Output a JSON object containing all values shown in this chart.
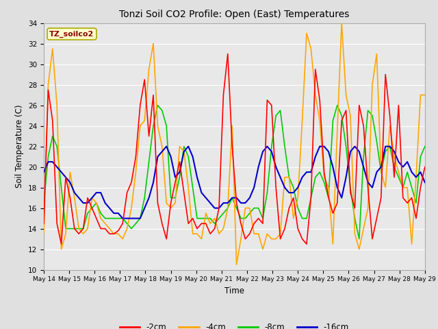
{
  "title": "Tonzi Soil CO2 Profile: Open (East) Temperatures",
  "xlabel": "Time",
  "ylabel": "Soil Temperature (C)",
  "legend_label": "TZ_soilco2",
  "ylim": [
    10,
    34
  ],
  "yticks": [
    10,
    12,
    14,
    16,
    18,
    20,
    22,
    24,
    26,
    28,
    30,
    32,
    34
  ],
  "line_colors": {
    "-2cm": "#ff0000",
    "-4cm": "#ffa500",
    "-8cm": "#00cc00",
    "-16cm": "#0000cc"
  },
  "line_widths": {
    "-2cm": 1.2,
    "-4cm": 1.2,
    "-8cm": 1.2,
    "-16cm": 1.5
  },
  "background_color": "#e0e0e0",
  "plot_bg_color": "#e8e8e8",
  "grid_color": "#ffffff",
  "x_start": 14,
  "x_end": 29,
  "x_labels": [
    "May 14",
    "May 15",
    "May 16",
    "May 17",
    "May 18",
    "May 19",
    "May 20",
    "May 21",
    "May 22",
    "May 23",
    "May 24",
    "May 25",
    "May 26",
    "May 27",
    "May 28",
    "May 29"
  ],
  "x_ticks": [
    14,
    15,
    16,
    17,
    18,
    19,
    20,
    21,
    22,
    23,
    24,
    25,
    26,
    27,
    28,
    29
  ],
  "data_2cm": [
    14.5,
    27.5,
    24.5,
    14.5,
    12.5,
    19.0,
    17.0,
    14.0,
    13.5,
    14.0,
    17.0,
    16.0,
    15.0,
    14.0,
    14.0,
    13.5,
    13.5,
    13.8,
    14.5,
    17.5,
    18.5,
    21.0,
    26.0,
    28.5,
    23.0,
    27.0,
    16.5,
    14.5,
    13.0,
    16.5,
    18.5,
    20.5,
    17.5,
    14.5,
    15.0,
    14.0,
    14.5,
    14.5,
    13.5,
    14.0,
    16.0,
    27.0,
    31.0,
    22.0,
    16.5,
    14.5,
    13.0,
    13.5,
    14.5,
    15.0,
    14.5,
    26.5,
    26.0,
    18.0,
    13.0,
    14.0,
    16.0,
    17.0,
    14.0,
    13.0,
    12.5,
    17.0,
    29.5,
    26.5,
    19.5,
    17.0,
    15.5,
    16.5,
    24.5,
    25.5,
    17.5,
    16.0,
    26.0,
    24.0,
    18.0,
    13.0,
    15.0,
    17.0,
    29.0,
    25.0,
    19.0,
    26.0,
    17.0,
    16.5,
    17.0,
    15.0,
    18.0,
    20.0
  ],
  "data_4cm": [
    13.5,
    28.0,
    31.5,
    26.0,
    12.0,
    13.5,
    19.5,
    17.0,
    14.0,
    13.5,
    14.0,
    17.0,
    16.5,
    15.0,
    14.5,
    14.0,
    13.5,
    13.5,
    13.0,
    14.0,
    16.0,
    19.5,
    24.0,
    24.5,
    29.5,
    32.0,
    24.0,
    22.0,
    16.5,
    16.0,
    16.5,
    22.0,
    21.5,
    18.0,
    13.5,
    13.5,
    13.0,
    15.5,
    14.5,
    15.0,
    13.5,
    14.0,
    16.0,
    24.0,
    10.5,
    13.0,
    16.0,
    16.0,
    13.5,
    13.5,
    12.0,
    13.5,
    13.0,
    13.0,
    13.5,
    19.0,
    19.0,
    15.0,
    17.0,
    24.5,
    33.0,
    31.5,
    27.0,
    24.5,
    19.0,
    18.0,
    12.5,
    23.5,
    34.0,
    27.0,
    25.0,
    13.5,
    12.0,
    14.0,
    16.0,
    28.0,
    31.0,
    19.5,
    18.0,
    24.0,
    21.0,
    19.5,
    18.0,
    18.0,
    12.5,
    19.0,
    27.0,
    27.0
  ],
  "data_8cm": [
    16.5,
    21.0,
    23.0,
    22.0,
    18.0,
    14.0,
    14.0,
    14.0,
    14.0,
    14.0,
    15.5,
    16.0,
    16.5,
    15.5,
    15.0,
    15.0,
    15.0,
    15.0,
    15.0,
    14.5,
    14.0,
    14.5,
    15.0,
    17.0,
    20.5,
    24.0,
    26.0,
    25.5,
    24.0,
    17.0,
    17.0,
    19.0,
    22.0,
    21.0,
    18.0,
    15.0,
    15.0,
    15.0,
    15.0,
    14.5,
    15.0,
    15.5,
    16.0,
    17.0,
    16.0,
    15.0,
    15.0,
    15.5,
    16.0,
    16.0,
    15.0,
    17.5,
    22.0,
    25.0,
    25.5,
    22.0,
    19.0,
    18.0,
    16.0,
    15.0,
    15.0,
    17.0,
    19.0,
    19.5,
    18.5,
    17.0,
    24.5,
    26.0,
    25.0,
    22.0,
    18.0,
    15.0,
    13.0,
    21.0,
    25.5,
    25.0,
    22.5,
    19.5,
    21.5,
    22.0,
    20.0,
    19.0,
    18.0,
    19.5,
    18.0,
    16.5,
    21.0,
    22.0
  ],
  "data_16cm": [
    19.5,
    20.5,
    20.5,
    20.0,
    19.5,
    19.0,
    18.5,
    17.5,
    17.0,
    16.5,
    16.5,
    17.0,
    17.5,
    17.5,
    16.5,
    16.0,
    15.5,
    15.5,
    15.0,
    15.0,
    15.0,
    15.0,
    15.0,
    16.0,
    17.0,
    18.5,
    21.0,
    21.5,
    22.0,
    21.0,
    19.0,
    19.5,
    21.5,
    22.0,
    21.0,
    19.0,
    17.5,
    17.0,
    16.5,
    16.0,
    16.0,
    16.5,
    16.5,
    17.0,
    17.0,
    16.5,
    16.5,
    17.0,
    18.0,
    20.0,
    21.5,
    22.0,
    21.5,
    20.0,
    19.0,
    18.0,
    17.5,
    17.5,
    18.0,
    19.0,
    19.5,
    19.5,
    21.0,
    22.0,
    22.0,
    21.5,
    20.0,
    18.0,
    17.0,
    19.0,
    21.5,
    22.0,
    21.5,
    20.0,
    18.5,
    18.0,
    19.5,
    20.0,
    22.0,
    22.0,
    21.5,
    20.5,
    20.0,
    20.5,
    19.5,
    19.0,
    19.5,
    18.5
  ]
}
